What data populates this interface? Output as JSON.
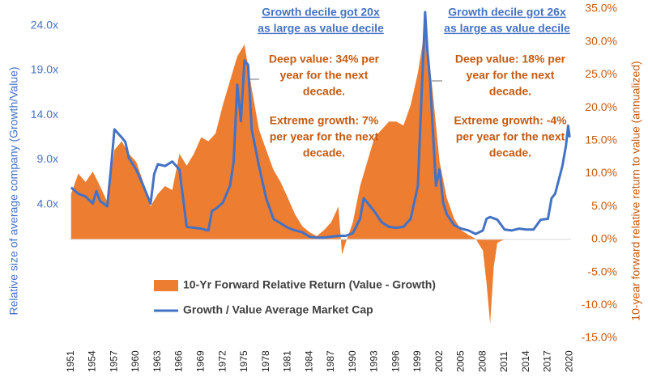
{
  "chart_data": {
    "type": "area-line",
    "series": [
      {
        "name": "10-Yr Forward Relative Return (Value - Growth)",
        "type": "area",
        "axis": "y2",
        "color": "#ed7d31",
        "x": [
          1951,
          1952,
          1953,
          1954,
          1955,
          1956,
          1957,
          1958,
          1959,
          1960,
          1961,
          1962,
          1963,
          1964,
          1965,
          1966,
          1967,
          1968,
          1969,
          1970,
          1971,
          1972,
          1973,
          1974,
          1975,
          1976,
          1977,
          1978,
          1979,
          1980,
          1981,
          1982,
          1983,
          1984,
          1985,
          1986,
          1987,
          1988,
          1988.5,
          1989,
          1990,
          1991,
          1992,
          1993,
          1994,
          1995,
          1996,
          1997,
          1998,
          1999,
          2000,
          2001,
          2002,
          2003,
          2004,
          2005,
          2006,
          2007,
          2008,
          2008.5,
          2009,
          2009.5,
          2010,
          2011
        ],
        "values": [
          6.9,
          10.0,
          8.7,
          10.3,
          8.1,
          5.7,
          13.6,
          14.9,
          13.0,
          11.8,
          8.7,
          5.0,
          6.9,
          8.1,
          7.5,
          13.0,
          11.2,
          13.0,
          15.5,
          14.9,
          16.1,
          20.4,
          24.1,
          27.8,
          29.6,
          22.9,
          16.7,
          13.6,
          10.6,
          8.7,
          6.3,
          3.8,
          2.0,
          1.1,
          0.5,
          1.4,
          2.6,
          5.0,
          -2.3,
          -0.5,
          2.6,
          8.1,
          11.8,
          15.5,
          16.7,
          17.9,
          17.9,
          17.3,
          20.4,
          25.3,
          32.1,
          22.9,
          11.8,
          6.3,
          3.2,
          1.4,
          0.7,
          0.1,
          -1.7,
          -6.6,
          -12.8,
          -4.2,
          -0.5,
          0
        ]
      },
      {
        "name": "Growth / Value Average Market Cap",
        "type": "line",
        "axis": "y",
        "color": "#4472c4",
        "x": [
          1951,
          1952,
          1953,
          1954,
          1954.5,
          1955,
          1956,
          1956.5,
          1957,
          1958,
          1958.5,
          1959,
          1960,
          1961,
          1962,
          1962.5,
          1963,
          1964,
          1965,
          1966,
          1967,
          1968,
          1969,
          1970,
          1970.5,
          1971,
          1972,
          1973,
          1973.5,
          1974,
          1974.5,
          1975,
          1975.5,
          1976,
          1977,
          1978,
          1979,
          1980,
          1981,
          1982,
          1983,
          1984,
          1985,
          1986,
          1987,
          1988,
          1989,
          1990,
          1991,
          1991.5,
          1992,
          1993,
          1994,
          1995,
          1996,
          1997,
          1998,
          1999,
          1999.5,
          2000,
          2000.3,
          2000.7,
          2001,
          2001.5,
          2002,
          2002.5,
          2003,
          2004,
          2005,
          2006,
          2007,
          2008,
          2008.5,
          2009,
          2010,
          2011,
          2012,
          2013,
          2014,
          2015,
          2016,
          2017,
          2017.5,
          2018,
          2019,
          2019.5,
          2019.8,
          2020
        ],
        "values": [
          5.9,
          5.2,
          4.9,
          4.1,
          5.5,
          4.4,
          3.8,
          7.9,
          12.4,
          11.5,
          11.0,
          9.2,
          7.9,
          6.1,
          4.1,
          7.4,
          8.5,
          8.3,
          8.8,
          7.9,
          1.5,
          1.4,
          1.3,
          1.1,
          3.3,
          3.5,
          4.2,
          6.1,
          8.8,
          17.4,
          13.3,
          20.1,
          19.6,
          12.4,
          8.3,
          4.7,
          2.4,
          1.9,
          1.4,
          1.1,
          0.9,
          0.4,
          0.3,
          0.3,
          0.4,
          0.5,
          0.5,
          0.8,
          2.4,
          4.7,
          4.2,
          3.2,
          2.0,
          1.5,
          1.4,
          1.5,
          2.4,
          6.1,
          16.0,
          25.5,
          21.4,
          17.8,
          13.3,
          6.1,
          7.9,
          4.2,
          2.9,
          1.7,
          1.3,
          1.1,
          0.7,
          1.1,
          2.4,
          2.6,
          2.3,
          1.2,
          1.1,
          1.3,
          1.2,
          1.2,
          2.3,
          2.4,
          4.7,
          5.2,
          8.3,
          10.6,
          12.8,
          11.5
        ]
      }
    ],
    "y_label": "Relative size of average company (Growth/Value)",
    "y2_label": "10-year forward relative return to value (annualized)",
    "xlim": [
      1950.8,
      2020.2
    ],
    "xticks": [
      1951,
      1954,
      1957,
      1960,
      1963,
      1966,
      1969,
      1972,
      1975,
      1978,
      1981,
      1984,
      1987,
      1990,
      1993,
      1996,
      1999,
      2002,
      2005,
      2008,
      2011,
      2014,
      2017,
      2020
    ],
    "ylim": [
      -10.94,
      25.86
    ],
    "yticks": [
      {
        "value": 4,
        "label": "4.0x"
      },
      {
        "value": 9,
        "label": "9.0x"
      },
      {
        "value": 14,
        "label": "14.0x"
      },
      {
        "value": 19,
        "label": "19.0x"
      },
      {
        "value": 24,
        "label": "24.0x"
      }
    ],
    "y2lim": [
      -15,
      35
    ],
    "y2ticks": [
      {
        "value": -15,
        "label": "-15.0%"
      },
      {
        "value": -10,
        "label": "-10.0%"
      },
      {
        "value": -5,
        "label": "-5.0%"
      },
      {
        "value": 0,
        "label": "0.0%"
      },
      {
        "value": 5,
        "label": "5.0%"
      },
      {
        "value": 10,
        "label": "10.0%"
      },
      {
        "value": 15,
        "label": "15.0%"
      },
      {
        "value": 20,
        "label": "20.0%"
      },
      {
        "value": 25,
        "label": "25.0%"
      },
      {
        "value": 30,
        "label": "30.0%"
      },
      {
        "value": 35,
        "label": "35.0%"
      }
    ],
    "annotations": [
      {
        "lines": [
          "Growth decile got 20x",
          "as large as value decile"
        ],
        "color": "#4472c4"
      },
      {
        "lines": [
          "Deep value: 34% per",
          "year for the next",
          "decade."
        ],
        "color": "#c55a11"
      },
      {
        "lines": [
          "Extreme growth: 7%",
          "per year for the next",
          "decade."
        ],
        "color": "#c55a11"
      },
      {
        "lines": [
          "Growth decile got 26x",
          "as large as value decile"
        ],
        "color": "#4472c4"
      },
      {
        "lines": [
          "Deep value: 18% per",
          "year for the next",
          "decade."
        ],
        "color": "#c55a11"
      },
      {
        "lines": [
          "Extreme growth: -4%",
          "per year for the next",
          "decade."
        ],
        "color": "#c55a11"
      }
    ]
  }
}
